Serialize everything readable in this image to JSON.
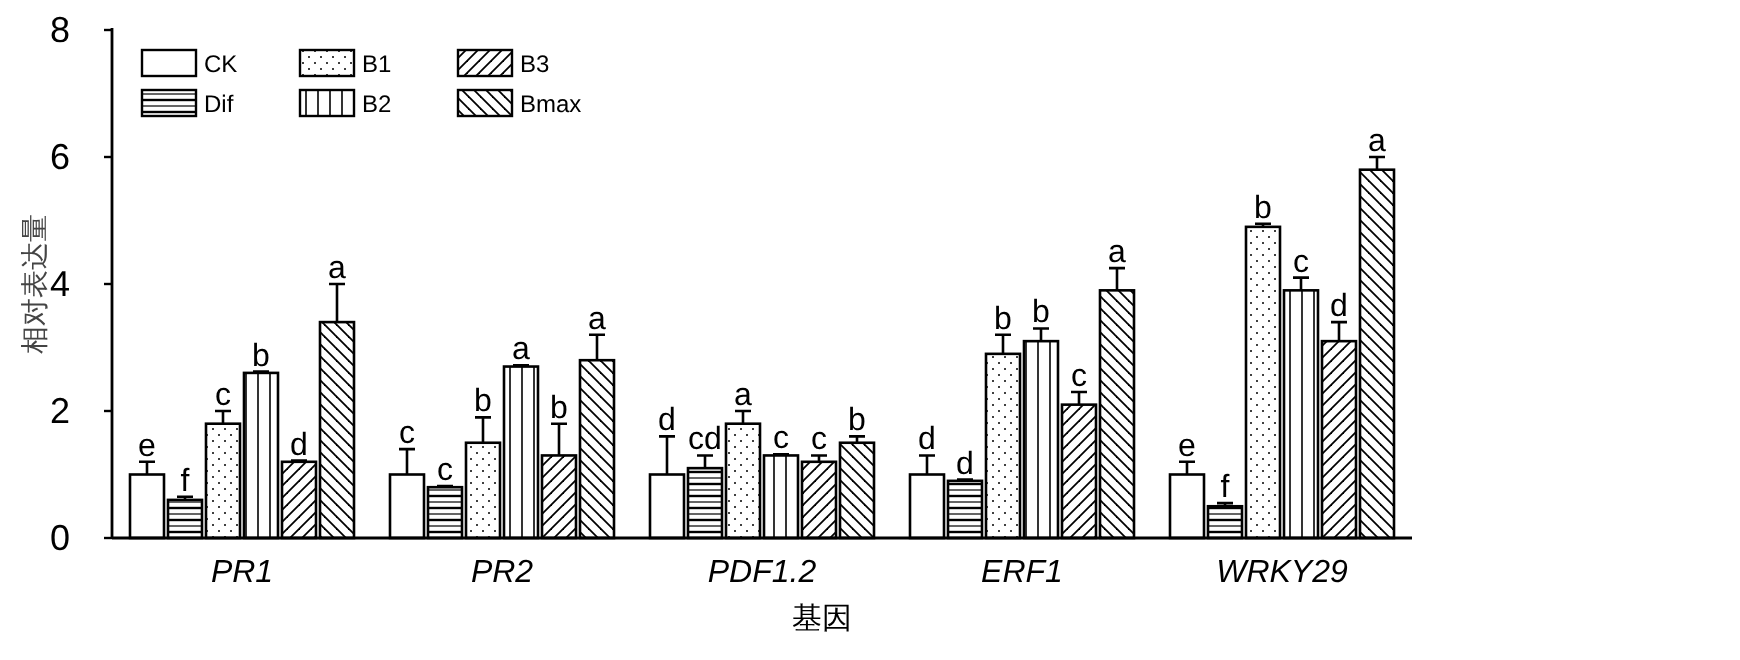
{
  "chart_data": {
    "type": "bar",
    "xlabel": "基因",
    "ylabel": "相对表达量",
    "categories": [
      "PR1",
      "PR2",
      "PDF1.2",
      "ERF1",
      "WRKY29"
    ],
    "ylim": [
      0,
      8
    ],
    "yticks": [
      0,
      2,
      4,
      6,
      8
    ],
    "legend": "top left",
    "grid": false,
    "series": [
      {
        "name": "CK",
        "color": "#000000",
        "values": [
          1.0,
          1.0,
          1.0,
          1.0,
          1.0
        ],
        "errors": [
          0.2,
          0.4,
          0.6,
          0.3,
          0.2
        ],
        "value_labels": [
          "e",
          "c",
          "d",
          "d",
          "e"
        ]
      },
      {
        "name": "Dif",
        "color": "#000000",
        "values": [
          0.6,
          0.8,
          1.1,
          0.9,
          0.5
        ],
        "errors": [
          0.05,
          0.02,
          0.2,
          0.02,
          0.05
        ],
        "value_labels": [
          "f",
          "c",
          "cd",
          "d",
          "f"
        ]
      },
      {
        "name": "B1",
        "color": "#000000",
        "values": [
          1.8,
          1.5,
          1.8,
          2.9,
          4.9
        ],
        "errors": [
          0.2,
          0.4,
          0.2,
          0.3,
          0.05
        ],
        "value_labels": [
          "c",
          "b",
          "a",
          "b",
          "b"
        ]
      },
      {
        "name": "B2",
        "color": "#000000",
        "values": [
          2.6,
          2.7,
          1.3,
          3.1,
          3.9
        ],
        "errors": [
          0.02,
          0.02,
          0.02,
          0.2,
          0.2
        ],
        "value_labels": [
          "b",
          "a",
          "c",
          "b",
          "c"
        ]
      },
      {
        "name": "B3",
        "color": "#000000",
        "values": [
          1.2,
          1.3,
          1.2,
          2.1,
          3.1
        ],
        "errors": [
          0.02,
          0.5,
          0.1,
          0.2,
          0.3
        ],
        "value_labels": [
          "d",
          "b",
          "c",
          "c",
          "d"
        ]
      },
      {
        "name": "Bmax",
        "color": "#000000",
        "values": [
          3.4,
          2.8,
          1.5,
          3.9,
          5.8
        ],
        "errors": [
          0.6,
          0.4,
          0.1,
          0.35,
          0.2
        ],
        "value_labels": [
          "a",
          "a",
          "b",
          "a",
          "a"
        ]
      }
    ]
  }
}
